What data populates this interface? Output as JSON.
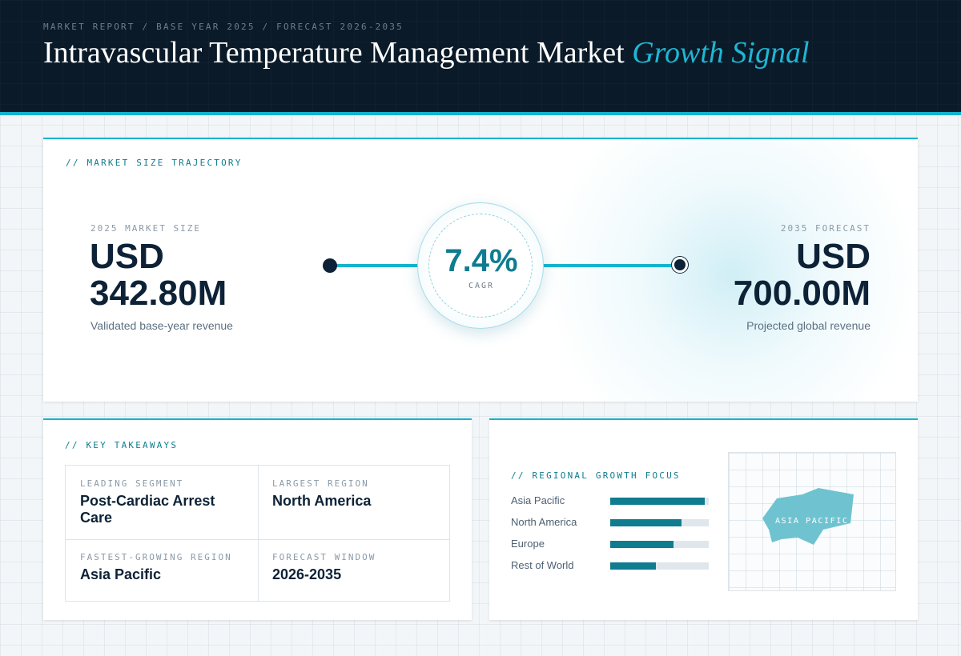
{
  "header": {
    "eyebrow": "MARKET REPORT / BASE YEAR 2025 / FORECAST 2026-2035",
    "title_main": "Intravascular Temperature Management Market",
    "title_accent": "Growth Signal"
  },
  "trajectory": {
    "section_label": "// MARKET SIZE TRAJECTORY",
    "base": {
      "label": "2025 MARKET SIZE",
      "currency": "USD",
      "amount": "342.80M",
      "sub": "Validated base-year revenue"
    },
    "forecast": {
      "label": "2035 FORECAST",
      "currency": "USD",
      "amount": "700.00M",
      "sub": "Projected global revenue"
    },
    "cagr": {
      "value": "7.4%",
      "label": "CAGR"
    }
  },
  "takeaways": {
    "section_label": "// KEY TAKEAWAYS",
    "items": [
      {
        "key": "LEADING SEGMENT",
        "value": "Post-Cardiac Arrest Care"
      },
      {
        "key": "LARGEST REGION",
        "value": "North America"
      },
      {
        "key": "FASTEST-GROWING REGION",
        "value": "Asia Pacific"
      },
      {
        "key": "FORECAST WINDOW",
        "value": "2026-2035"
      }
    ]
  },
  "regional": {
    "section_label": "// REGIONAL GROWTH FOCUS",
    "bars": [
      {
        "name": "Asia Pacific",
        "level": 0.96
      },
      {
        "name": "North America",
        "level": 0.72
      },
      {
        "name": "Europe",
        "level": 0.64
      },
      {
        "name": "Rest of World",
        "level": 0.46
      }
    ],
    "map_label": "ASIA PACIFIC",
    "map_color": "#6fc3d1"
  },
  "colors": {
    "accent": "#14b4cf",
    "teal": "#0f7c90",
    "navy": "#0d2236"
  }
}
